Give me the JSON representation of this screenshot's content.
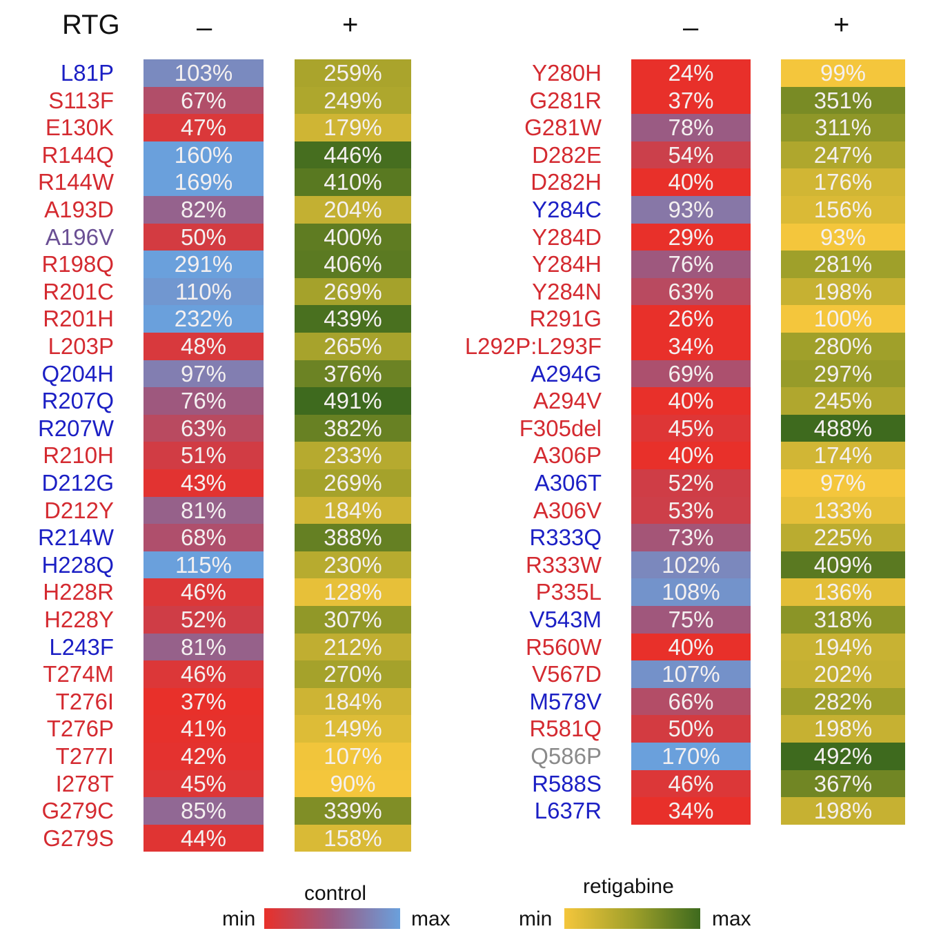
{
  "chart_data": {
    "type": "heatmap",
    "row_header": "RTG",
    "column_headers": [
      "–",
      "+"
    ],
    "label_colors": {
      "red": "#d42a30",
      "blue": "#1b1fc4",
      "purple": "#6a4f94",
      "gray": "#8a8a8a"
    },
    "panels": [
      {
        "rows": [
          {
            "mutation": "L81P",
            "label_color": "blue",
            "control": "103%",
            "retigabine": "259%"
          },
          {
            "mutation": "S113F",
            "label_color": "red",
            "control": "67%",
            "retigabine": "249%"
          },
          {
            "mutation": "E130K",
            "label_color": "red",
            "control": "47%",
            "retigabine": "179%"
          },
          {
            "mutation": "R144Q",
            "label_color": "red",
            "control": "160%",
            "retigabine": "446%"
          },
          {
            "mutation": "R144W",
            "label_color": "red",
            "control": "169%",
            "retigabine": "410%"
          },
          {
            "mutation": "A193D",
            "label_color": "red",
            "control": "82%",
            "retigabine": "204%"
          },
          {
            "mutation": "A196V",
            "label_color": "purple",
            "control": "50%",
            "retigabine": "400%"
          },
          {
            "mutation": "R198Q",
            "label_color": "red",
            "control": "291%",
            "retigabine": "406%"
          },
          {
            "mutation": "R201C",
            "label_color": "red",
            "control": "110%",
            "retigabine": "269%"
          },
          {
            "mutation": "R201H",
            "label_color": "red",
            "control": "232%",
            "retigabine": "439%"
          },
          {
            "mutation": "L203P",
            "label_color": "red",
            "control": "48%",
            "retigabine": "265%"
          },
          {
            "mutation": "Q204H",
            "label_color": "blue",
            "control": "97%",
            "retigabine": "376%"
          },
          {
            "mutation": "R207Q",
            "label_color": "blue",
            "control": "76%",
            "retigabine": "491%"
          },
          {
            "mutation": "R207W",
            "label_color": "blue",
            "control": "63%",
            "retigabine": "382%"
          },
          {
            "mutation": "R210H",
            "label_color": "red",
            "control": "51%",
            "retigabine": "233%"
          },
          {
            "mutation": "D212G",
            "label_color": "blue",
            "control": "43%",
            "retigabine": "269%"
          },
          {
            "mutation": "D212Y",
            "label_color": "red",
            "control": "81%",
            "retigabine": "184%"
          },
          {
            "mutation": "R214W",
            "label_color": "blue",
            "control": "68%",
            "retigabine": "388%"
          },
          {
            "mutation": "H228Q",
            "label_color": "blue",
            "control": "115%",
            "retigabine": "230%"
          },
          {
            "mutation": "H228R",
            "label_color": "red",
            "control": "46%",
            "retigabine": "128%"
          },
          {
            "mutation": "H228Y",
            "label_color": "red",
            "control": "52%",
            "retigabine": "307%"
          },
          {
            "mutation": "L243F",
            "label_color": "blue",
            "control": "81%",
            "retigabine": "212%"
          },
          {
            "mutation": "T274M",
            "label_color": "red",
            "control": "46%",
            "retigabine": "270%"
          },
          {
            "mutation": "T276I",
            "label_color": "red",
            "control": "37%",
            "retigabine": "184%"
          },
          {
            "mutation": "T276P",
            "label_color": "red",
            "control": "41%",
            "retigabine": "149%"
          },
          {
            "mutation": "T277I",
            "label_color": "red",
            "control": "42%",
            "retigabine": "107%"
          },
          {
            "mutation": "I278T",
            "label_color": "red",
            "control": "45%",
            "retigabine": "90%"
          },
          {
            "mutation": "G279C",
            "label_color": "red",
            "control": "85%",
            "retigabine": "339%"
          },
          {
            "mutation": "G279S",
            "label_color": "red",
            "control": "44%",
            "retigabine": "158%"
          }
        ]
      },
      {
        "rows": [
          {
            "mutation": "Y280H",
            "label_color": "red",
            "control": "24%",
            "retigabine": "99%"
          },
          {
            "mutation": "G281R",
            "label_color": "red",
            "control": "37%",
            "retigabine": "351%"
          },
          {
            "mutation": "G281W",
            "label_color": "red",
            "control": "78%",
            "retigabine": "311%"
          },
          {
            "mutation": "D282E",
            "label_color": "red",
            "control": "54%",
            "retigabine": "247%"
          },
          {
            "mutation": "D282H",
            "label_color": "red",
            "control": "40%",
            "retigabine": "176%"
          },
          {
            "mutation": "Y284C",
            "label_color": "blue",
            "control": "93%",
            "retigabine": "156%"
          },
          {
            "mutation": "Y284D",
            "label_color": "red",
            "control": "29%",
            "retigabine": "93%"
          },
          {
            "mutation": "Y284H",
            "label_color": "red",
            "control": "76%",
            "retigabine": "281%"
          },
          {
            "mutation": "Y284N",
            "label_color": "red",
            "control": "63%",
            "retigabine": "198%"
          },
          {
            "mutation": "R291G",
            "label_color": "red",
            "control": "26%",
            "retigabine": "100%"
          },
          {
            "mutation": "L292P:L293F",
            "label_color": "red",
            "control": "34%",
            "retigabine": "280%"
          },
          {
            "mutation": "A294G",
            "label_color": "blue",
            "control": "69%",
            "retigabine": "297%"
          },
          {
            "mutation": "A294V",
            "label_color": "red",
            "control": "40%",
            "retigabine": "245%"
          },
          {
            "mutation": "F305del",
            "label_color": "red",
            "control": "45%",
            "retigabine": "488%"
          },
          {
            "mutation": "A306P",
            "label_color": "red",
            "control": "40%",
            "retigabine": "174%"
          },
          {
            "mutation": "A306T",
            "label_color": "blue",
            "control": "52%",
            "retigabine": "97%"
          },
          {
            "mutation": "A306V",
            "label_color": "red",
            "control": "53%",
            "retigabine": "133%"
          },
          {
            "mutation": "R333Q",
            "label_color": "blue",
            "control": "73%",
            "retigabine": "225%"
          },
          {
            "mutation": "R333W",
            "label_color": "red",
            "control": "102%",
            "retigabine": "409%"
          },
          {
            "mutation": "P335L",
            "label_color": "red",
            "control": "108%",
            "retigabine": "136%"
          },
          {
            "mutation": "V543M",
            "label_color": "blue",
            "control": "75%",
            "retigabine": "318%"
          },
          {
            "mutation": "R560W",
            "label_color": "red",
            "control": "40%",
            "retigabine": "194%"
          },
          {
            "mutation": "V567D",
            "label_color": "red",
            "control": "107%",
            "retigabine": "202%"
          },
          {
            "mutation": "M578V",
            "label_color": "blue",
            "control": "66%",
            "retigabine": "282%"
          },
          {
            "mutation": "R581Q",
            "label_color": "red",
            "control": "50%",
            "retigabine": "198%"
          },
          {
            "mutation": "Q586P",
            "label_color": "gray",
            "control": "170%",
            "retigabine": "492%"
          },
          {
            "mutation": "R588S",
            "label_color": "blue",
            "control": "46%",
            "retigabine": "367%"
          },
          {
            "mutation": "L637R",
            "label_color": "blue",
            "control": "34%",
            "retigabine": "198%"
          }
        ]
      }
    ],
    "legend": {
      "control": {
        "title": "control",
        "min": "min",
        "max": "max",
        "colors": [
          "#e8302a",
          "#9b5a82",
          "#6aa0dc"
        ]
      },
      "retigabine": {
        "title": "retigabine",
        "min": "min",
        "max": "max",
        "colors": [
          "#f4c63c",
          "#a0a02a",
          "#3e6a1e"
        ]
      }
    }
  }
}
